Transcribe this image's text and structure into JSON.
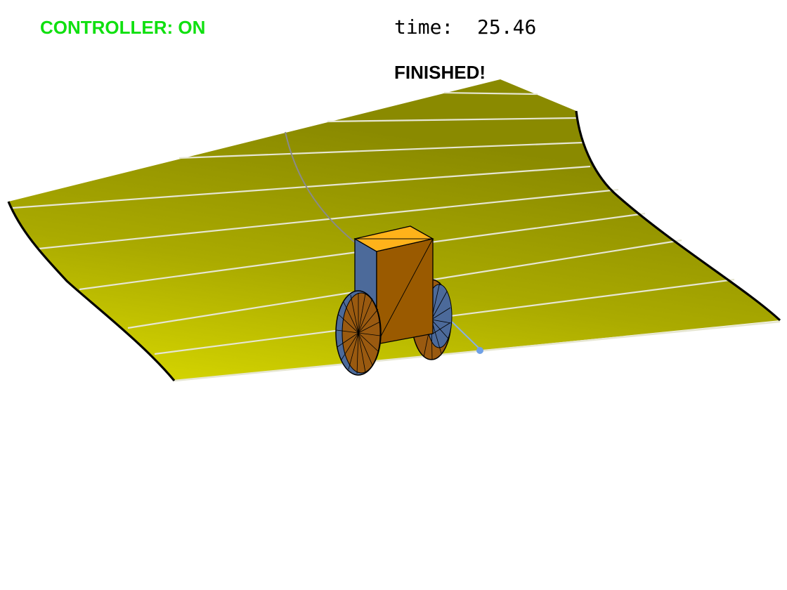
{
  "hud": {
    "controller_label": "CONTROLLER: ON",
    "time_label": "time:",
    "time_value": "25.46",
    "status_message": "FINISHED!"
  },
  "colors": {
    "controller_text": "#10e010",
    "terrain_light": "#d2d200",
    "terrain_dark": "#8a8a00",
    "terrain_contour": "#e6e6d2",
    "path_trace": "#8a8a8a",
    "robot_body_front": "#9a5a00",
    "robot_body_top": "#ffb21a",
    "robot_body_side": "#4c6a9a",
    "goal_marker": "#6fa0e6"
  }
}
